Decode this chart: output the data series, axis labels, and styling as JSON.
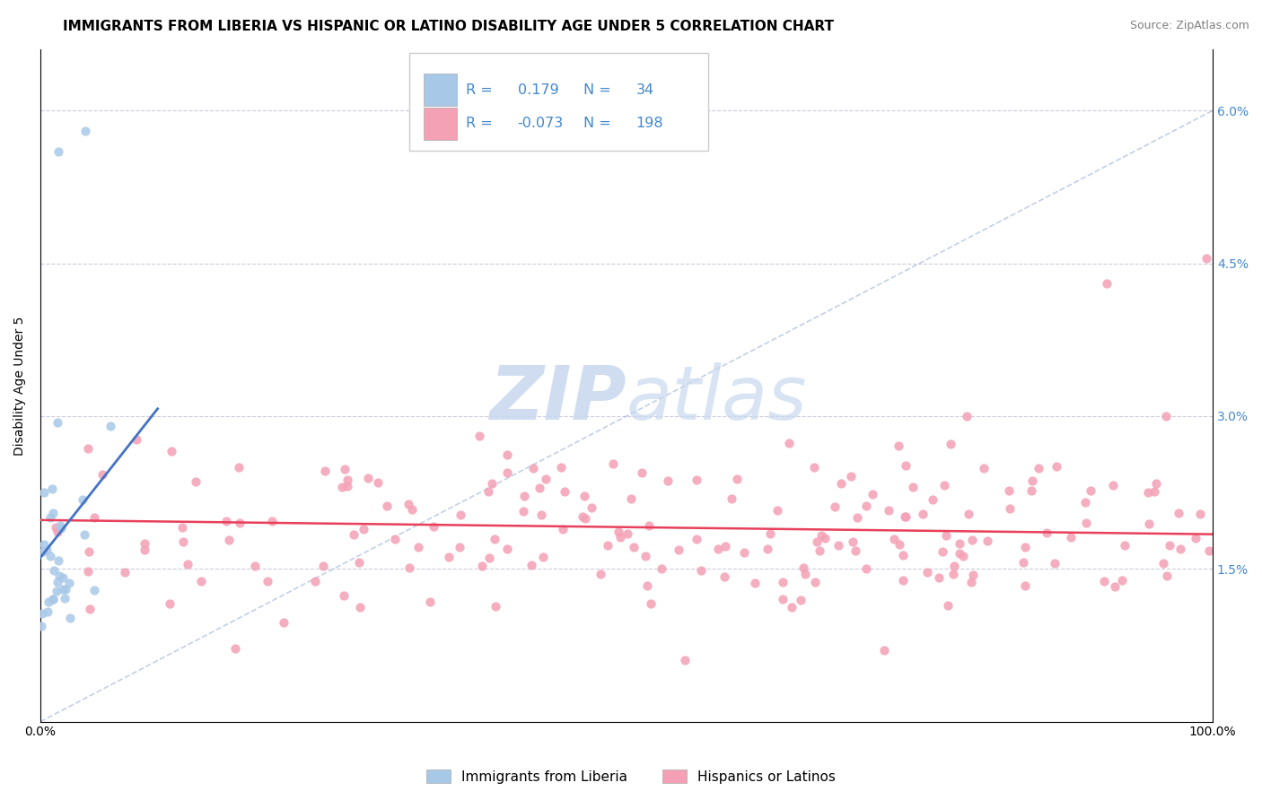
{
  "title": "IMMIGRANTS FROM LIBERIA VS HISPANIC OR LATINO DISABILITY AGE UNDER 5 CORRELATION CHART",
  "source": "Source: ZipAtlas.com",
  "ylabel": "Disability Age Under 5",
  "r_liberia": 0.179,
  "n_liberia": 34,
  "r_hispanic": -0.073,
  "n_hispanic": 198,
  "xlim": [
    0,
    100
  ],
  "ylim": [
    0,
    6.6
  ],
  "yticks": [
    0,
    1.5,
    3.0,
    4.5,
    6.0
  ],
  "ytick_labels": [
    "",
    "1.5%",
    "3.0%",
    "4.5%",
    "6.0%"
  ],
  "color_liberia": "#a8c8e8",
  "color_hispanic": "#f4a0b5",
  "line_color_liberia": "#4472c4",
  "line_color_hispanic": "#e8405a",
  "diag_color": "#aabbdd",
  "grid_color": "#ccccdd",
  "watermark_zip_color": "#c8d8ee",
  "watermark_atlas_color": "#c8d8ee",
  "legend_label_liberia": "Immigrants from Liberia",
  "legend_label_hispanic": "Hispanics or Latinos",
  "title_fontsize": 11,
  "axis_label_fontsize": 10,
  "tick_fontsize": 10,
  "right_tick_color": "#4488cc",
  "legend_text_color": "#4488cc",
  "seed_liberia": 10,
  "seed_hispanic": 20
}
